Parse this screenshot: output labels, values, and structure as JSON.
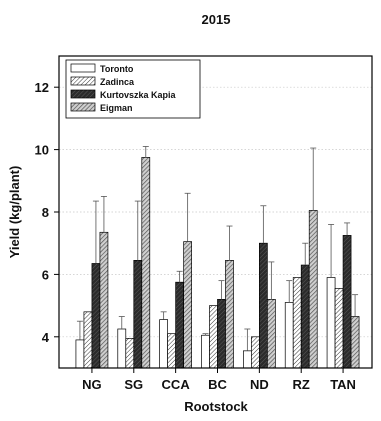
{
  "chart_data": {
    "type": "bar",
    "title": "2015",
    "xlabel": "Rootstock",
    "ylabel": "Yield (kg/plant)",
    "ylim": [
      3,
      13
    ],
    "yticks": [
      4,
      6,
      8,
      10,
      12
    ],
    "grid": true,
    "legend_position": "top-left",
    "categories": [
      "NG",
      "SG",
      "CCA",
      "BC",
      "ND",
      "RZ",
      "TAN"
    ],
    "series": [
      {
        "name": "Toronto",
        "fill": "white",
        "values": [
          3.9,
          4.25,
          4.55,
          4.05,
          3.55,
          5.1,
          5.9
        ],
        "errors": [
          0.6,
          0.4,
          0.25,
          0.05,
          0.7,
          0.7,
          1.7
        ]
      },
      {
        "name": "Zadinca",
        "fill": "hatch-light",
        "values": [
          4.8,
          3.95,
          4.1,
          5.0,
          4.0,
          5.9,
          5.55
        ]
      },
      {
        "name": "Kurtovszka Kapia",
        "fill": "hatch-dark",
        "values": [
          6.35,
          6.45,
          5.75,
          5.2,
          7.0,
          6.3,
          7.25
        ],
        "errors": [
          2.0,
          1.9,
          0.35,
          0.6,
          1.2,
          0.7,
          0.4
        ]
      },
      {
        "name": "Eigman",
        "fill": "hatch-medium",
        "values": [
          7.35,
          9.75,
          7.05,
          6.45,
          5.2,
          8.05,
          4.65
        ],
        "errors": [
          1.15,
          0.35,
          1.55,
          1.1,
          1.2,
          2.0,
          0.7
        ]
      }
    ]
  }
}
